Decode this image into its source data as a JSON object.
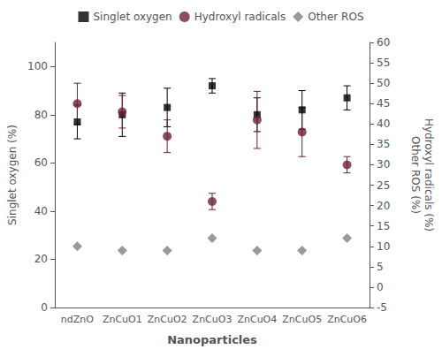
{
  "chart_data": {
    "type": "scatter",
    "categories": [
      "ndZnO",
      "ZnCuO1",
      "ZnCuO2",
      "ZnCuO3",
      "ZnCuO4",
      "ZnCuO5",
      "ZnCuO6"
    ],
    "xlabel": "Nanoparticles",
    "ylabel": "Singlet oxygen (%)",
    "y2label": [
      "Hydroxyl radicals (%)",
      "Other ROS (%)"
    ],
    "ylim": [
      0,
      110
    ],
    "yticks": [
      0,
      20,
      40,
      60,
      80,
      100
    ],
    "y2lim": [
      -5,
      60
    ],
    "y2ticks": [
      -5,
      0,
      5,
      10,
      15,
      20,
      25,
      30,
      35,
      40,
      45,
      50,
      55,
      60
    ],
    "grid": false,
    "legend": "top",
    "series": [
      {
        "name": "Singlet oxygen",
        "color": "#000000",
        "marker": "square",
        "values": [
          77,
          80,
          83,
          92,
          80,
          82,
          87
        ],
        "errors": [
          7,
          9,
          8,
          3,
          7,
          8,
          5
        ]
      },
      {
        "name": "Hydroxyl radicals",
        "color": "#6B2037",
        "marker": "circle",
        "axis": "y2",
        "values": [
          45,
          43,
          37,
          21,
          41,
          38,
          30
        ],
        "errors": [
          5,
          4,
          4,
          2,
          7,
          6,
          2
        ]
      },
      {
        "name": "Other ROS",
        "color": "#808080",
        "marker": "diamond",
        "axis": "y2",
        "values": [
          10,
          9,
          9,
          12,
          9,
          9,
          12
        ]
      }
    ]
  }
}
